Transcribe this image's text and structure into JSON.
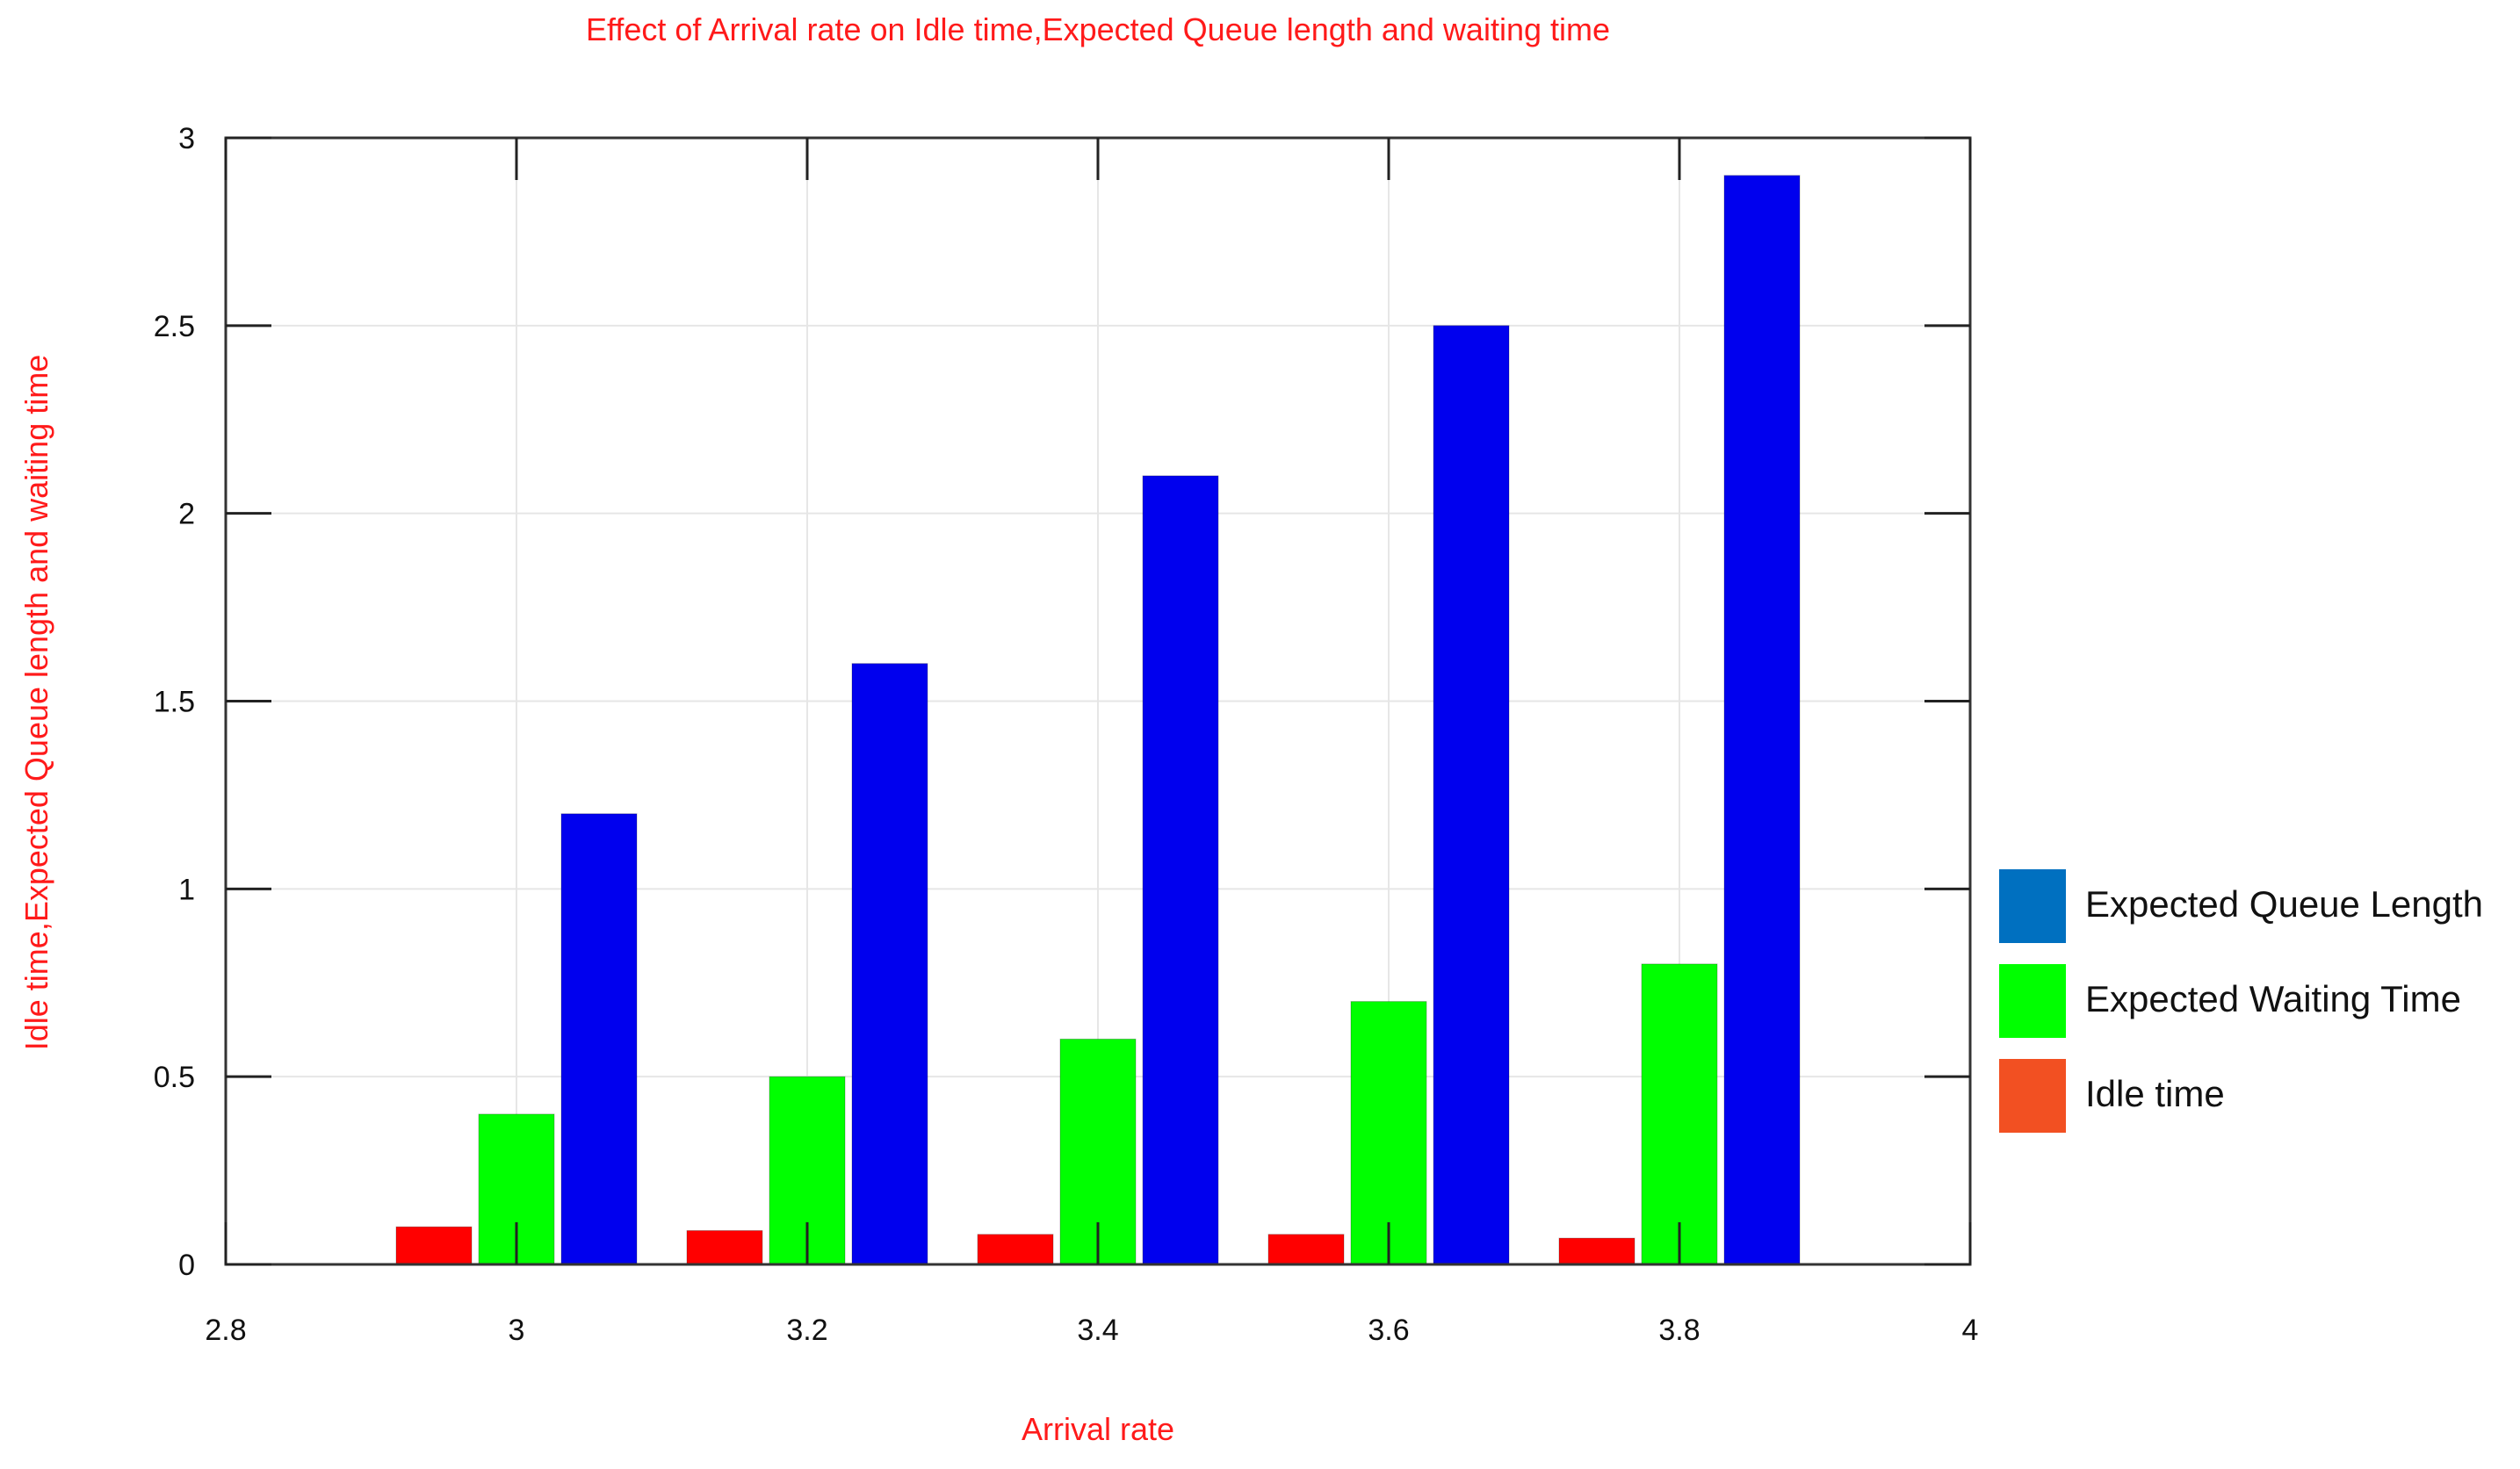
{
  "chart_data": {
    "type": "bar",
    "title": "Effect of Arrival rate on Idle time,Expected Queue length and waiting time",
    "xlabel": "Arrival rate",
    "ylabel": "Idle time,Expected Queue length and waiting time",
    "x": [
      3.0,
      3.2,
      3.4,
      3.6,
      3.8
    ],
    "xlim": [
      2.8,
      4.0
    ],
    "ylim": [
      0,
      3
    ],
    "x_ticks": [
      2.8,
      3.0,
      3.2,
      3.4,
      3.6,
      3.8,
      4.0
    ],
    "x_tick_labels": [
      "2.8",
      "3",
      "3.2",
      "3.4",
      "3.6",
      "3.8",
      "4"
    ],
    "y_ticks": [
      0,
      0.5,
      1,
      1.5,
      2,
      2.5,
      3
    ],
    "y_tick_labels": [
      "0",
      "0.5",
      "1",
      "1.5",
      "2",
      "2.5",
      "3"
    ],
    "grid": true,
    "legend_position": "right",
    "series": [
      {
        "name": "Idle time",
        "color": "#ff0000",
        "legend_color": "#f25022",
        "values": [
          0.1,
          0.09,
          0.08,
          0.08,
          0.07
        ]
      },
      {
        "name": "Expected Waiting Time",
        "color": "#00ff00",
        "legend_color": "#00ff00",
        "values": [
          0.4,
          0.5,
          0.6,
          0.7,
          0.8
        ]
      },
      {
        "name": "Expected Queue Length",
        "color": "#0000ee",
        "legend_color": "#0070c0",
        "values": [
          1.2,
          1.6,
          2.1,
          2.5,
          2.9
        ]
      }
    ],
    "legend_order": [
      "Expected Queue Length",
      "Expected Waiting Time",
      "Idle time"
    ]
  }
}
